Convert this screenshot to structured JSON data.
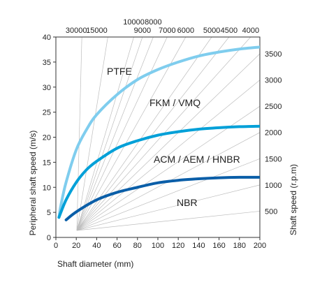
{
  "chart_data": {
    "type": "line",
    "xlabel": "Shaft diameter  (mm)",
    "ylabel": "Peripheral shaft speed  (m/s)",
    "y2label": "Shaft speed  (r.p.m)",
    "xlim": [
      0,
      200
    ],
    "ylim": [
      0,
      40
    ],
    "x_ticks": [
      0,
      20,
      40,
      60,
      80,
      100,
      120,
      140,
      160,
      180,
      200
    ],
    "y_ticks": [
      0,
      5,
      10,
      15,
      20,
      25,
      30,
      35,
      40
    ],
    "grid": false,
    "series": [
      {
        "name": "PTFE",
        "color": "#7fcdee",
        "x": [
          3,
          5,
          10,
          20,
          30,
          40,
          60,
          80,
          100,
          120,
          140,
          160,
          180,
          200
        ],
        "y": [
          4,
          6.5,
          11,
          17.5,
          21.5,
          24.5,
          28.5,
          31.5,
          33.5,
          35,
          36.2,
          37,
          37.6,
          38
        ]
      },
      {
        "name": "FKM / VMQ",
        "color": "#00a0d8",
        "x": [
          3,
          10,
          20,
          30,
          40,
          60,
          80,
          100,
          120,
          140,
          160,
          180,
          200
        ],
        "y": [
          4,
          7.5,
          11,
          13.5,
          15.2,
          17.8,
          19.3,
          20.4,
          21.1,
          21.6,
          21.9,
          22.1,
          22.2
        ]
      },
      {
        "name": "ACM / AEM / HNBR",
        "color": "#0a5ea8",
        "x": [
          10,
          20,
          40,
          60,
          80,
          100,
          120,
          140,
          160,
          180,
          200
        ],
        "y": [
          3.5,
          5.1,
          7.5,
          9.0,
          10.0,
          10.9,
          11.4,
          11.7,
          11.9,
          12.0,
          12.0
        ]
      }
    ],
    "band_labels": [
      "PTFE",
      "FKM / VMQ",
      "ACM / AEM / HNBR",
      "NBR"
    ],
    "rpm_lines": [
      30000,
      15000,
      10000,
      9000,
      8000,
      7000,
      6000,
      5000,
      4500,
      4000,
      3500,
      3000,
      2500,
      2000,
      1500,
      1000,
      500
    ],
    "rpm_top_labels": [
      "30000",
      "15000",
      "10000",
      "8000",
      "9000",
      "7000",
      "6000",
      "5000",
      "4500",
      "4000"
    ],
    "rpm_right_labels": [
      "3500",
      "3000",
      "2500",
      "2000",
      "1500",
      "1000",
      "500"
    ]
  }
}
